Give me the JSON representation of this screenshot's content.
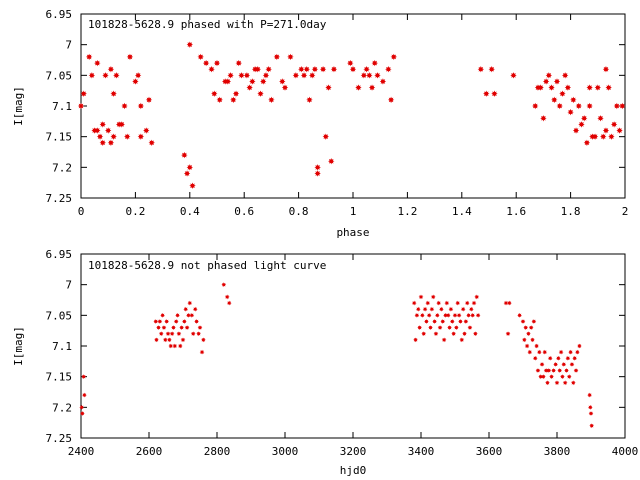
{
  "chart_data": [
    {
      "type": "scatter",
      "title": "101828-5628.9 phased with P=271.0day",
      "xlabel": "phase",
      "ylabel": "I[mag]",
      "xlim": [
        0,
        2
      ],
      "ylim": [
        7.25,
        6.95
      ],
      "y_inverted": true,
      "grid": false,
      "color": "#e00000",
      "xticks": [
        {
          "v": 0,
          "label": "0"
        },
        {
          "v": 0.2,
          "label": "0.2"
        },
        {
          "v": 0.4,
          "label": "0.4"
        },
        {
          "v": 0.6,
          "label": "0.6"
        },
        {
          "v": 0.8,
          "label": "0.8"
        },
        {
          "v": 1.0,
          "label": "1"
        },
        {
          "v": 1.2,
          "label": "1.2"
        },
        {
          "v": 1.4,
          "label": "1.4"
        },
        {
          "v": 1.6,
          "label": "1.6"
        },
        {
          "v": 1.8,
          "label": "1.8"
        },
        {
          "v": 2.0,
          "label": "2"
        }
      ],
      "yticks": [
        {
          "v": 6.95,
          "label": "6.95"
        },
        {
          "v": 7.0,
          "label": "7"
        },
        {
          "v": 7.05,
          "label": "7.05"
        },
        {
          "v": 7.1,
          "label": "7.1"
        },
        {
          "v": 7.15,
          "label": "7.15"
        },
        {
          "v": 7.2,
          "label": "7.2"
        },
        {
          "v": 7.25,
          "label": "7.25"
        }
      ],
      "points": [
        [
          0.0,
          7.1
        ],
        [
          0.01,
          7.08
        ],
        [
          0.03,
          7.02
        ],
        [
          0.04,
          7.05
        ],
        [
          0.05,
          7.14
        ],
        [
          0.06,
          7.03
        ],
        [
          0.06,
          7.14
        ],
        [
          0.07,
          7.15
        ],
        [
          0.08,
          7.13
        ],
        [
          0.08,
          7.16
        ],
        [
          0.09,
          7.05
        ],
        [
          0.1,
          7.14
        ],
        [
          0.11,
          7.16
        ],
        [
          0.11,
          7.04
        ],
        [
          0.12,
          7.15
        ],
        [
          0.12,
          7.08
        ],
        [
          0.13,
          7.05
        ],
        [
          0.14,
          7.13
        ],
        [
          0.15,
          7.13
        ],
        [
          0.16,
          7.1
        ],
        [
          0.17,
          7.15
        ],
        [
          0.18,
          7.02
        ],
        [
          0.2,
          7.06
        ],
        [
          0.21,
          7.05
        ],
        [
          0.22,
          7.1
        ],
        [
          0.22,
          7.15
        ],
        [
          0.24,
          7.14
        ],
        [
          0.25,
          7.09
        ],
        [
          0.26,
          7.16
        ],
        [
          0.38,
          7.18
        ],
        [
          0.39,
          7.21
        ],
        [
          0.4,
          7.2
        ],
        [
          0.4,
          7.0
        ],
        [
          0.41,
          7.23
        ],
        [
          0.44,
          7.02
        ],
        [
          0.46,
          7.03
        ],
        [
          0.48,
          7.04
        ],
        [
          0.49,
          7.08
        ],
        [
          0.5,
          7.03
        ],
        [
          0.51,
          7.09
        ],
        [
          0.53,
          7.06
        ],
        [
          0.54,
          7.06
        ],
        [
          0.55,
          7.05
        ],
        [
          0.56,
          7.09
        ],
        [
          0.57,
          7.08
        ],
        [
          0.58,
          7.03
        ],
        [
          0.59,
          7.05
        ],
        [
          0.61,
          7.05
        ],
        [
          0.62,
          7.07
        ],
        [
          0.63,
          7.06
        ],
        [
          0.64,
          7.04
        ],
        [
          0.65,
          7.04
        ],
        [
          0.66,
          7.08
        ],
        [
          0.67,
          7.06
        ],
        [
          0.68,
          7.05
        ],
        [
          0.69,
          7.04
        ],
        [
          0.7,
          7.09
        ],
        [
          0.72,
          7.02
        ],
        [
          0.74,
          7.06
        ],
        [
          0.75,
          7.07
        ],
        [
          0.77,
          7.02
        ],
        [
          0.79,
          7.05
        ],
        [
          0.81,
          7.04
        ],
        [
          0.82,
          7.05
        ],
        [
          0.83,
          7.04
        ],
        [
          0.84,
          7.09
        ],
        [
          0.85,
          7.05
        ],
        [
          0.86,
          7.04
        ],
        [
          0.87,
          7.2
        ],
        [
          0.87,
          7.21
        ],
        [
          0.89,
          7.04
        ],
        [
          0.9,
          7.15
        ],
        [
          0.91,
          7.07
        ],
        [
          0.92,
          7.19
        ],
        [
          0.93,
          7.04
        ],
        [
          0.99,
          7.03
        ],
        [
          1.0,
          7.04
        ],
        [
          1.02,
          7.07
        ],
        [
          1.04,
          7.05
        ],
        [
          1.05,
          7.04
        ],
        [
          1.06,
          7.05
        ],
        [
          1.07,
          7.07
        ],
        [
          1.08,
          7.03
        ],
        [
          1.09,
          7.05
        ],
        [
          1.11,
          7.06
        ],
        [
          1.13,
          7.04
        ],
        [
          1.14,
          7.09
        ],
        [
          1.15,
          7.02
        ],
        [
          1.47,
          7.04
        ],
        [
          1.49,
          7.08
        ],
        [
          1.51,
          7.04
        ],
        [
          1.52,
          7.08
        ],
        [
          1.59,
          7.05
        ],
        [
          1.67,
          7.1
        ],
        [
          1.68,
          7.07
        ],
        [
          1.69,
          7.07
        ],
        [
          1.7,
          7.12
        ],
        [
          1.71,
          7.06
        ],
        [
          1.72,
          7.05
        ],
        [
          1.73,
          7.07
        ],
        [
          1.74,
          7.09
        ],
        [
          1.75,
          7.06
        ],
        [
          1.76,
          7.1
        ],
        [
          1.77,
          7.08
        ],
        [
          1.78,
          7.05
        ],
        [
          1.79,
          7.07
        ],
        [
          1.8,
          7.11
        ],
        [
          1.81,
          7.09
        ],
        [
          1.82,
          7.14
        ],
        [
          1.83,
          7.1
        ],
        [
          1.84,
          7.13
        ],
        [
          1.85,
          7.12
        ],
        [
          1.86,
          7.16
        ],
        [
          1.87,
          7.1
        ],
        [
          1.88,
          7.15
        ],
        [
          1.89,
          7.15
        ],
        [
          1.9,
          7.07
        ],
        [
          1.91,
          7.12
        ],
        [
          1.92,
          7.15
        ],
        [
          1.93,
          7.14
        ],
        [
          1.94,
          7.07
        ],
        [
          1.95,
          7.15
        ],
        [
          1.96,
          7.13
        ],
        [
          1.97,
          7.1
        ],
        [
          1.98,
          7.14
        ],
        [
          1.99,
          7.1
        ],
        [
          1.93,
          7.04
        ],
        [
          1.87,
          7.07
        ]
      ]
    },
    {
      "type": "scatter",
      "title": "101828-5628.9 not phased light curve",
      "xlabel": "hjd0",
      "ylabel": "I[mag]",
      "xlim": [
        2400,
        4000
      ],
      "ylim": [
        7.25,
        6.95
      ],
      "y_inverted": true,
      "grid": false,
      "color": "#e00000",
      "xticks": [
        {
          "v": 2400,
          "label": "2400"
        },
        {
          "v": 2600,
          "label": "2600"
        },
        {
          "v": 2800,
          "label": "2800"
        },
        {
          "v": 3000,
          "label": "3000"
        },
        {
          "v": 3200,
          "label": "3200"
        },
        {
          "v": 3400,
          "label": "3400"
        },
        {
          "v": 3600,
          "label": "3600"
        },
        {
          "v": 3800,
          "label": "3800"
        },
        {
          "v": 4000,
          "label": "4000"
        }
      ],
      "yticks": [
        {
          "v": 6.95,
          "label": "6.95"
        },
        {
          "v": 7.0,
          "label": "7"
        },
        {
          "v": 7.05,
          "label": "7.05"
        },
        {
          "v": 7.1,
          "label": "7.1"
        },
        {
          "v": 7.15,
          "label": "7.15"
        },
        {
          "v": 7.2,
          "label": "7.2"
        },
        {
          "v": 7.25,
          "label": "7.25"
        }
      ],
      "points": [
        [
          2402,
          7.2
        ],
        [
          2404,
          7.21
        ],
        [
          2408,
          7.15
        ],
        [
          2410,
          7.18
        ],
        [
          2620,
          7.06
        ],
        [
          2622,
          7.09
        ],
        [
          2628,
          7.07
        ],
        [
          2632,
          7.06
        ],
        [
          2636,
          7.08
        ],
        [
          2640,
          7.05
        ],
        [
          2644,
          7.07
        ],
        [
          2648,
          7.09
        ],
        [
          2652,
          7.06
        ],
        [
          2656,
          7.08
        ],
        [
          2660,
          7.09
        ],
        [
          2664,
          7.1
        ],
        [
          2668,
          7.08
        ],
        [
          2672,
          7.07
        ],
        [
          2676,
          7.1
        ],
        [
          2680,
          7.06
        ],
        [
          2684,
          7.05
        ],
        [
          2688,
          7.08
        ],
        [
          2692,
          7.1
        ],
        [
          2696,
          7.07
        ],
        [
          2700,
          7.09
        ],
        [
          2704,
          7.06
        ],
        [
          2708,
          7.04
        ],
        [
          2712,
          7.07
        ],
        [
          2716,
          7.05
        ],
        [
          2720,
          7.03
        ],
        [
          2726,
          7.05
        ],
        [
          2730,
          7.08
        ],
        [
          2736,
          7.04
        ],
        [
          2740,
          7.06
        ],
        [
          2746,
          7.08
        ],
        [
          2750,
          7.07
        ],
        [
          2756,
          7.11
        ],
        [
          2760,
          7.09
        ],
        [
          2820,
          7.0
        ],
        [
          2830,
          7.02
        ],
        [
          2836,
          7.03
        ],
        [
          3380,
          7.03
        ],
        [
          3384,
          7.09
        ],
        [
          3388,
          7.05
        ],
        [
          3392,
          7.04
        ],
        [
          3396,
          7.07
        ],
        [
          3400,
          7.02
        ],
        [
          3404,
          7.05
        ],
        [
          3408,
          7.08
        ],
        [
          3412,
          7.04
        ],
        [
          3416,
          7.06
        ],
        [
          3420,
          7.03
        ],
        [
          3424,
          7.05
        ],
        [
          3428,
          7.07
        ],
        [
          3432,
          7.04
        ],
        [
          3436,
          7.02
        ],
        [
          3440,
          7.06
        ],
        [
          3444,
          7.08
        ],
        [
          3448,
          7.05
        ],
        [
          3452,
          7.03
        ],
        [
          3456,
          7.07
        ],
        [
          3460,
          7.04
        ],
        [
          3464,
          7.06
        ],
        [
          3468,
          7.09
        ],
        [
          3472,
          7.05
        ],
        [
          3476,
          7.03
        ],
        [
          3480,
          7.05
        ],
        [
          3484,
          7.07
        ],
        [
          3488,
          7.04
        ],
        [
          3492,
          7.06
        ],
        [
          3496,
          7.08
        ],
        [
          3500,
          7.05
        ],
        [
          3504,
          7.07
        ],
        [
          3508,
          7.03
        ],
        [
          3512,
          7.05
        ],
        [
          3516,
          7.06
        ],
        [
          3520,
          7.09
        ],
        [
          3524,
          7.04
        ],
        [
          3528,
          7.08
        ],
        [
          3532,
          7.06
        ],
        [
          3536,
          7.03
        ],
        [
          3540,
          7.05
        ],
        [
          3544,
          7.07
        ],
        [
          3548,
          7.04
        ],
        [
          3552,
          7.05
        ],
        [
          3556,
          7.03
        ],
        [
          3560,
          7.08
        ],
        [
          3564,
          7.02
        ],
        [
          3568,
          7.05
        ],
        [
          3650,
          7.03
        ],
        [
          3656,
          7.08
        ],
        [
          3660,
          7.03
        ],
        [
          3690,
          7.05
        ],
        [
          3700,
          7.06
        ],
        [
          3704,
          7.09
        ],
        [
          3708,
          7.07
        ],
        [
          3712,
          7.1
        ],
        [
          3716,
          7.08
        ],
        [
          3720,
          7.11
        ],
        [
          3724,
          7.07
        ],
        [
          3728,
          7.09
        ],
        [
          3732,
          7.06
        ],
        [
          3736,
          7.12
        ],
        [
          3740,
          7.1
        ],
        [
          3744,
          7.14
        ],
        [
          3748,
          7.11
        ],
        [
          3752,
          7.15
        ],
        [
          3756,
          7.13
        ],
        [
          3760,
          7.15
        ],
        [
          3764,
          7.11
        ],
        [
          3768,
          7.14
        ],
        [
          3772,
          7.16
        ],
        [
          3776,
          7.14
        ],
        [
          3780,
          7.12
        ],
        [
          3784,
          7.15
        ],
        [
          3790,
          7.14
        ],
        [
          3796,
          7.13
        ],
        [
          3800,
          7.16
        ],
        [
          3804,
          7.12
        ],
        [
          3808,
          7.14
        ],
        [
          3812,
          7.11
        ],
        [
          3816,
          7.15
        ],
        [
          3820,
          7.13
        ],
        [
          3824,
          7.16
        ],
        [
          3828,
          7.14
        ],
        [
          3832,
          7.12
        ],
        [
          3836,
          7.15
        ],
        [
          3840,
          7.11
        ],
        [
          3844,
          7.13
        ],
        [
          3848,
          7.16
        ],
        [
          3852,
          7.12
        ],
        [
          3856,
          7.14
        ],
        [
          3860,
          7.11
        ],
        [
          3866,
          7.1
        ],
        [
          3896,
          7.18
        ],
        [
          3898,
          7.2
        ],
        [
          3900,
          7.21
        ],
        [
          3902,
          7.23
        ]
      ]
    }
  ]
}
